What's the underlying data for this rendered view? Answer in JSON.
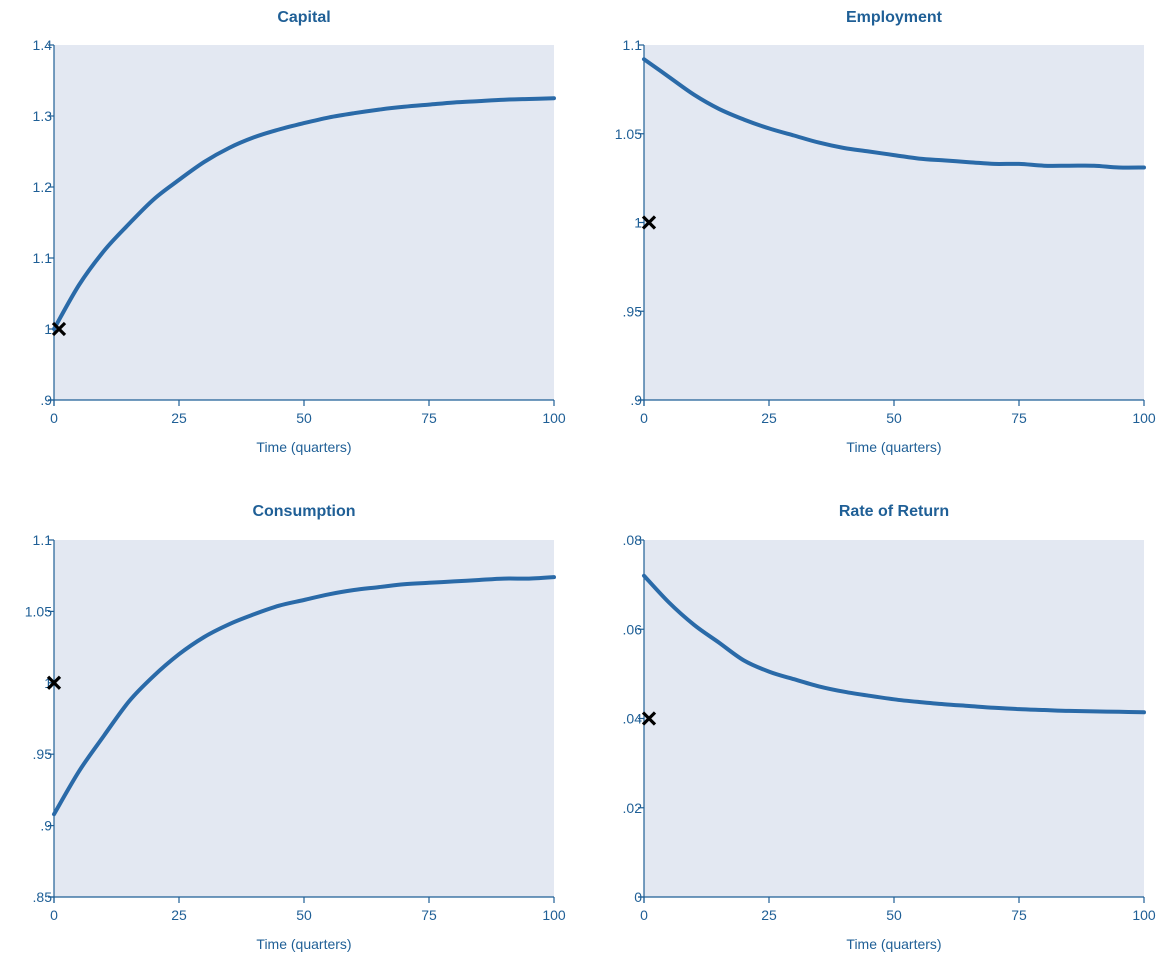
{
  "chart_data": [
    {
      "type": "line",
      "title": "Capital",
      "xlabel": "Time (quarters)",
      "ylabel": "",
      "xlim": [
        0,
        100
      ],
      "ylim": [
        0.9,
        1.4
      ],
      "x_ticks": [
        0,
        25,
        50,
        75,
        100
      ],
      "x_tick_labels": [
        "0",
        "25",
        "50",
        "75",
        "100"
      ],
      "y_ticks": [
        0.9,
        1.0,
        1.1,
        1.2,
        1.3,
        1.4
      ],
      "y_tick_labels": [
        ".9",
        "1",
        "1.1",
        "1.2",
        "1.3",
        "1.4"
      ],
      "grid": false,
      "series": [
        {
          "x": [
            0,
            5,
            10,
            15,
            20,
            25,
            30,
            35,
            40,
            45,
            50,
            55,
            60,
            65,
            70,
            75,
            80,
            85,
            90,
            95,
            100
          ],
          "values": [
            1.0,
            1.062,
            1.11,
            1.148,
            1.183,
            1.21,
            1.235,
            1.255,
            1.27,
            1.281,
            1.29,
            1.298,
            1.304,
            1.309,
            1.313,
            1.316,
            1.319,
            1.321,
            1.323,
            1.324,
            1.325
          ]
        }
      ],
      "marker": {
        "symbol": "x",
        "x": 1,
        "y": 1.0,
        "color": "#000000"
      },
      "line_color": "#2a6aa8"
    },
    {
      "type": "line",
      "title": "Employment",
      "xlabel": "Time (quarters)",
      "ylabel": "",
      "xlim": [
        0,
        100
      ],
      "ylim": [
        0.9,
        1.1
      ],
      "x_ticks": [
        0,
        25,
        50,
        75,
        100
      ],
      "x_tick_labels": [
        "0",
        "25",
        "50",
        "75",
        "100"
      ],
      "y_ticks": [
        0.9,
        0.95,
        1.0,
        1.05,
        1.1
      ],
      "y_tick_labels": [
        ".9",
        ".95",
        "1",
        "1.05",
        "1.1"
      ],
      "grid": false,
      "series": [
        {
          "x": [
            0,
            5,
            10,
            15,
            20,
            25,
            30,
            35,
            40,
            45,
            50,
            55,
            60,
            65,
            70,
            75,
            80,
            85,
            90,
            95,
            100
          ],
          "values": [
            1.092,
            1.082,
            1.072,
            1.064,
            1.058,
            1.053,
            1.049,
            1.045,
            1.042,
            1.04,
            1.038,
            1.036,
            1.035,
            1.034,
            1.033,
            1.033,
            1.032,
            1.032,
            1.032,
            1.031,
            1.031
          ]
        }
      ],
      "marker": {
        "symbol": "x",
        "x": 1,
        "y": 1.0,
        "color": "#000000"
      },
      "line_color": "#2a6aa8"
    },
    {
      "type": "line",
      "title": "Consumption",
      "xlabel": "Time (quarters)",
      "ylabel": "",
      "xlim": [
        0,
        100
      ],
      "ylim": [
        0.85,
        1.1
      ],
      "x_ticks": [
        0,
        25,
        50,
        75,
        100
      ],
      "x_tick_labels": [
        "0",
        "25",
        "50",
        "75",
        "100"
      ],
      "y_ticks": [
        0.85,
        0.9,
        0.95,
        1.0,
        1.05,
        1.1
      ],
      "y_tick_labels": [
        ".85",
        ".9",
        ".95",
        "1",
        "1.05",
        "1.1"
      ],
      "grid": false,
      "series": [
        {
          "x": [
            0,
            5,
            10,
            15,
            20,
            25,
            30,
            35,
            40,
            45,
            50,
            55,
            60,
            65,
            70,
            75,
            80,
            85,
            90,
            95,
            100
          ],
          "values": [
            0.908,
            0.938,
            0.963,
            0.987,
            1.005,
            1.02,
            1.032,
            1.041,
            1.048,
            1.054,
            1.058,
            1.062,
            1.065,
            1.067,
            1.069,
            1.07,
            1.071,
            1.072,
            1.073,
            1.073,
            1.074
          ]
        }
      ],
      "marker": {
        "symbol": "x",
        "x": 0,
        "y": 1.0,
        "color": "#000000"
      },
      "line_color": "#2a6aa8"
    },
    {
      "type": "line",
      "title": "Rate of Return",
      "xlabel": "Time (quarters)",
      "ylabel": "",
      "xlim": [
        0,
        100
      ],
      "ylim": [
        0,
        0.08
      ],
      "x_ticks": [
        0,
        25,
        50,
        75,
        100
      ],
      "x_tick_labels": [
        "0",
        "25",
        "50",
        "75",
        "100"
      ],
      "y_ticks": [
        0,
        0.02,
        0.04,
        0.06,
        0.08
      ],
      "y_tick_labels": [
        "0",
        ".02",
        ".04",
        ".06",
        ".08"
      ],
      "grid": false,
      "series": [
        {
          "x": [
            0,
            5,
            10,
            15,
            20,
            25,
            30,
            35,
            40,
            45,
            50,
            55,
            60,
            65,
            70,
            75,
            80,
            85,
            90,
            95,
            100
          ],
          "values": [
            0.072,
            0.066,
            0.061,
            0.057,
            0.053,
            0.0505,
            0.0488,
            0.0472,
            0.046,
            0.0451,
            0.0443,
            0.0437,
            0.0432,
            0.0428,
            0.0424,
            0.0421,
            0.0419,
            0.0417,
            0.0416,
            0.0415,
            0.0414
          ]
        }
      ],
      "marker": {
        "symbol": "x",
        "x": 1,
        "y": 0.04,
        "color": "#000000"
      },
      "line_color": "#2a6aa8"
    }
  ]
}
